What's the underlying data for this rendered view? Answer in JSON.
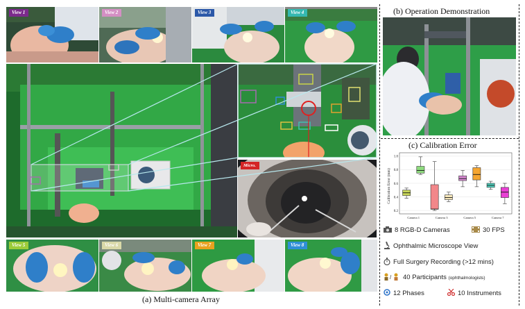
{
  "view_tags": [
    {
      "label": "View 1",
      "color": "#7b2a8c"
    },
    {
      "label": "View 2",
      "color": "#d48fc4"
    },
    {
      "label": "View 3",
      "color": "#2b58a8"
    },
    {
      "label": "View 4",
      "color": "#35b8b0"
    },
    {
      "label": "View 5",
      "color": "#9ccc3a"
    },
    {
      "label": "View 6",
      "color": "#d9d9a8"
    },
    {
      "label": "View 7",
      "color": "#e8a21f"
    },
    {
      "label": "View 8",
      "color": "#2e8fd6"
    }
  ],
  "micro_tag": {
    "label": "Micro.",
    "color": "#d42525"
  },
  "captions": {
    "multi_camera": "(a) Multi-camera Array",
    "operation": "(b) Operation Demonstration",
    "calibration": "(c) Calibration Error"
  },
  "chart_data": {
    "type": "box",
    "ylabel": "Calibration Error (mm)",
    "yticks": [
      "0.2",
      "0.4",
      "0.6",
      "0.8",
      "1.0"
    ],
    "ylim": [
      0.15,
      1.05
    ],
    "categories": [
      "Camera 1",
      "Camera 3",
      "Camera 5",
      "Camera 7"
    ],
    "boxes": [
      {
        "color": "#c8d65a",
        "min": 0.38,
        "q1": 0.42,
        "median": 0.46,
        "q3": 0.5,
        "max": 0.53
      },
      {
        "color": "#8fdc7f",
        "min": 0.73,
        "q1": 0.75,
        "median": 0.79,
        "q3": 0.85,
        "max": 0.99
      },
      {
        "color": "#f2878a",
        "min": 0.2,
        "q1": 0.22,
        "median": 0.22,
        "q3": 0.58,
        "max": 0.92
      },
      {
        "color": "#f6e7ba",
        "min": 0.33,
        "q1": 0.36,
        "median": 0.39,
        "q3": 0.43,
        "max": 0.47
      },
      {
        "color": "#d98ad4",
        "min": 0.55,
        "q1": 0.64,
        "median": 0.67,
        "q3": 0.71,
        "max": 0.79
      },
      {
        "color": "#f5a530",
        "min": 0.55,
        "q1": 0.65,
        "median": 0.73,
        "q3": 0.83,
        "max": 0.86
      },
      {
        "color": "#4fd3c0",
        "min": 0.51,
        "q1": 0.54,
        "median": 0.57,
        "q3": 0.6,
        "max": 0.63
      },
      {
        "color": "#e93fd4",
        "min": 0.3,
        "q1": 0.39,
        "median": 0.47,
        "q3": 0.54,
        "max": 0.6
      }
    ]
  },
  "features": [
    {
      "icon": "camera-icon",
      "text": "8 RGB-D Cameras",
      "note": ""
    },
    {
      "icon": "film-icon",
      "text": "30 FPS",
      "note": ""
    },
    {
      "icon": "microscope-icon",
      "text": "Ophthalmic Microscope View",
      "note": ""
    },
    {
      "icon": "stopwatch-icon",
      "text": "Full Surgery Recording (>12 mins)",
      "note": ""
    },
    {
      "icon": "people-icon",
      "text": "40 Participants",
      "note": "(ophthalmologists)"
    },
    {
      "icon": "cycle-icon",
      "text": "12 Phases",
      "note": ""
    },
    {
      "icon": "scissors-icon",
      "text": "10 Instruments",
      "note": ""
    }
  ]
}
